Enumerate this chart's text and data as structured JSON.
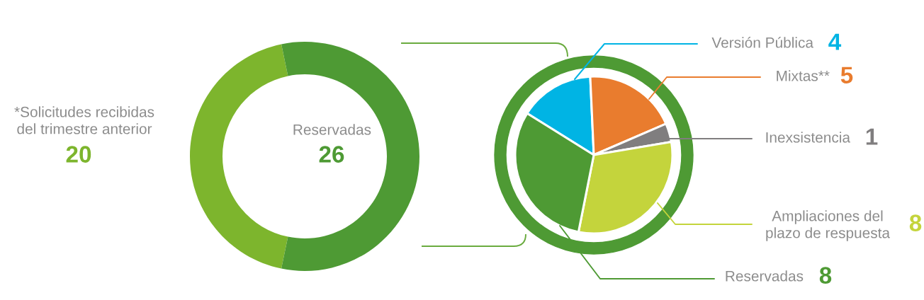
{
  "chart_data": [
    {
      "type": "donut",
      "categories": [
        "*Solicitudes recibidas\ndel trimestre anterior",
        "Reservadas"
      ],
      "values": [
        20,
        26
      ],
      "colors": [
        "#7db52d",
        "#4e9a34"
      ],
      "data_labels": true
    },
    {
      "type": "pie",
      "categories": [
        "Versión Pública",
        "Mixtas**",
        "Inexsistencia",
        "Ampliaciones del\nplazo de respuesta",
        "Reservadas"
      ],
      "values": [
        4,
        5,
        1,
        8,
        8
      ],
      "colors": [
        "#00b4e4",
        "#e97c2e",
        "#807e7f",
        "#c4d43c",
        "#4e9a34"
      ],
      "data_labels": true
    }
  ]
}
